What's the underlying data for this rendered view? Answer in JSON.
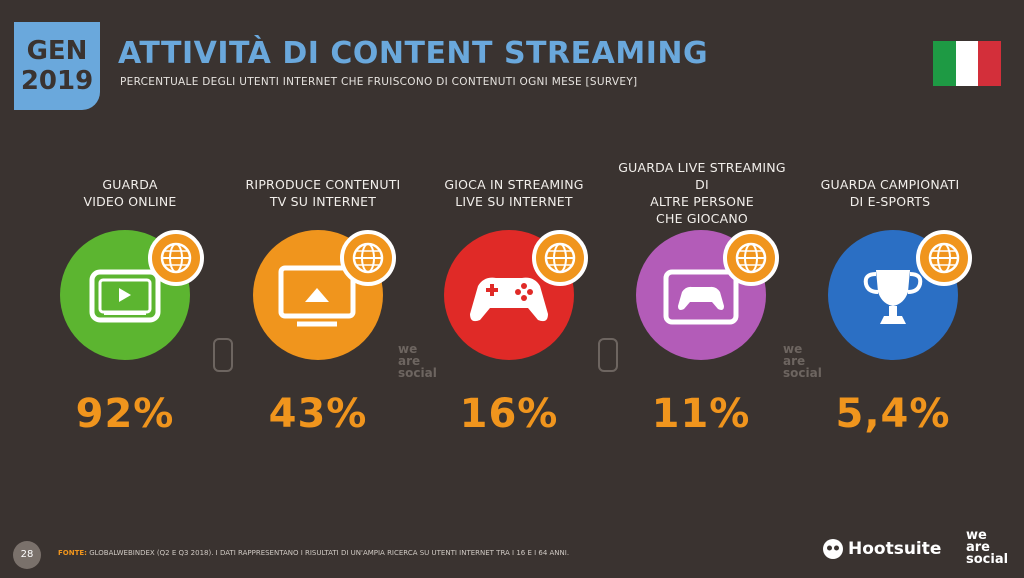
{
  "badge": {
    "line1": "GEN",
    "line2": "2019"
  },
  "title": "ATTIVITÀ DI CONTENT STREAMING",
  "subtitle": "PERCENTUALE DEGLI UTENTI INTERNET CHE FRUISCONO DI CONTENUTI OGNI MESE [SURVEY]",
  "flag": {
    "colors": [
      "#1e9a44",
      "#ffffff",
      "#d32f3a"
    ]
  },
  "items": [
    {
      "label": [
        "GUARDA",
        "VIDEO ONLINE"
      ],
      "value": "92%",
      "color": "#5cb530",
      "icon": "video-play-icon"
    },
    {
      "label": [
        "RIPRODUCE CONTENUTI",
        "TV SU INTERNET"
      ],
      "value": "43%",
      "color": "#f0951d",
      "icon": "tv-cast-icon"
    },
    {
      "label": [
        "GIOCA IN STREAMING",
        "LIVE SU INTERNET"
      ],
      "value": "16%",
      "color": "#e02a27",
      "icon": "gamepad-icon"
    },
    {
      "label": [
        "GUARDA LIVE STREAMING DI",
        "ALTRE PERSONE",
        "CHE GIOCANO"
      ],
      "value": "11%",
      "color": "#b35cb8",
      "icon": "gamepad-screen-icon"
    },
    {
      "label": [
        "GUARDA CAMPIONATI",
        "DI E-SPORTS"
      ],
      "value": "5,4%",
      "color": "#2b6fc4",
      "icon": "trophy-icon"
    }
  ],
  "footer": {
    "page": "28",
    "source_label": "FONTE:",
    "source_text": "GLOBALWEBINDEX (Q2 E Q3 2018). I DATI RAPPRESENTANO I RISULTATI DI UN'AMPIA RICERCA SU UTENTI INTERNET TRA I 16 E I 64 ANNI.",
    "brand1": "Hootsuite",
    "brand2": [
      "we",
      "are",
      "social"
    ]
  },
  "watermark": [
    "we",
    "are",
    "social"
  ]
}
